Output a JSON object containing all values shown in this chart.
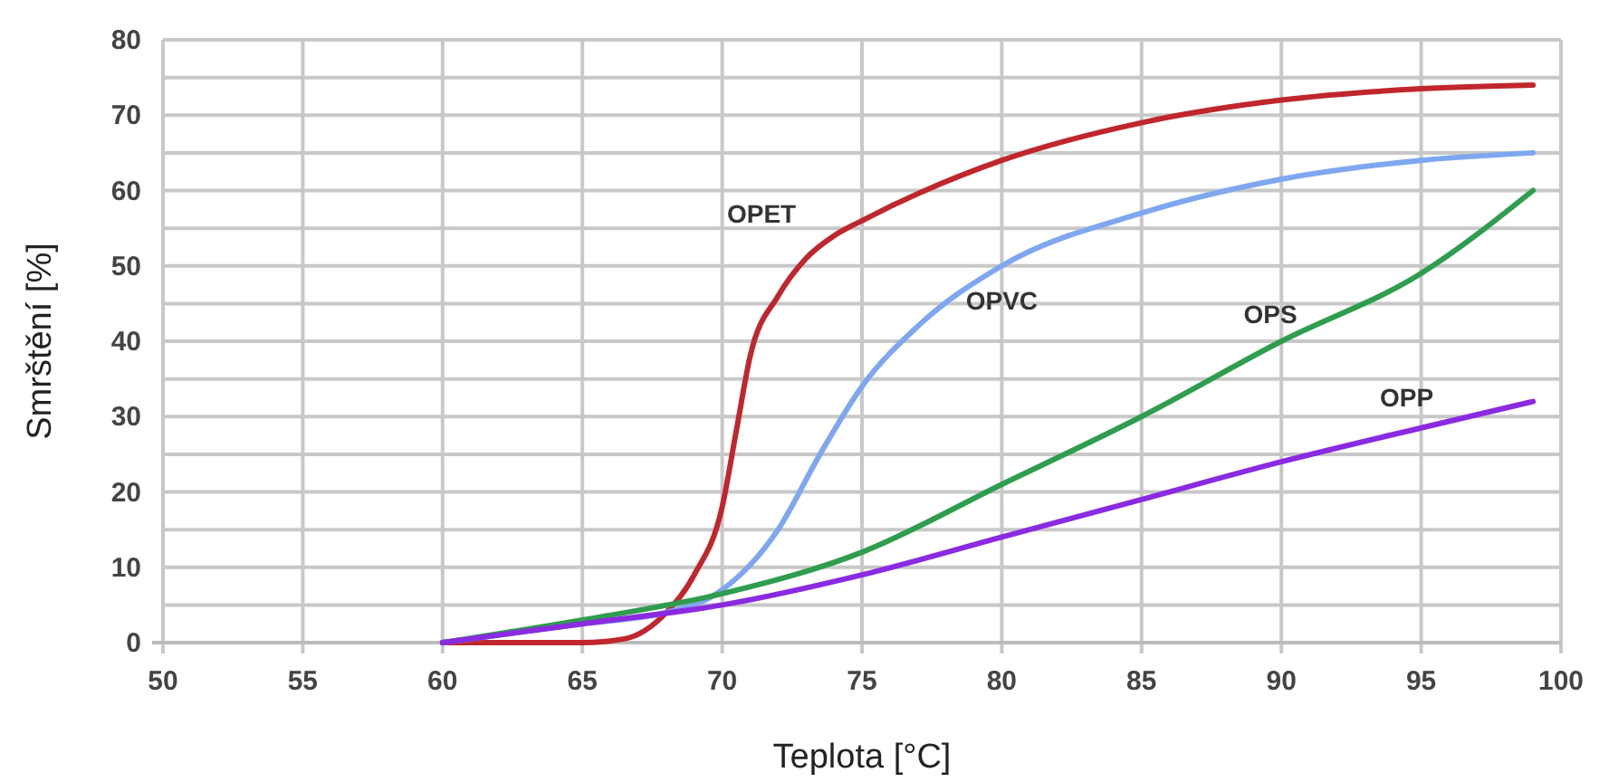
{
  "chart_data": {
    "type": "line",
    "xlabel": "Teplota [°C]",
    "ylabel": "Smrštění [%]",
    "xlim": [
      50,
      100
    ],
    "ylim": [
      0,
      80
    ],
    "xticks": [
      50,
      55,
      60,
      65,
      70,
      75,
      80,
      85,
      90,
      95,
      100
    ],
    "yticks": [
      0,
      {
        "value": 5,
        "label": null
      },
      10,
      {
        "value": 15,
        "label": null
      },
      20,
      {
        "value": 25,
        "label": null
      },
      30,
      {
        "value": 35,
        "label": null
      },
      40,
      {
        "value": 45,
        "label": null
      },
      50,
      {
        "value": 55,
        "label": null
      },
      60,
      {
        "value": 65,
        "label": null
      },
      70,
      {
        "value": 75,
        "label": null
      },
      80
    ],
    "grid": true,
    "marker": "none",
    "line_style": "solid",
    "series": [
      {
        "name": "OPET",
        "color": "#c0272d",
        "x": [
          60,
          65,
          66.5,
          68,
          69,
          70,
          70.5,
          71,
          72,
          73,
          74,
          75,
          80,
          85,
          90,
          95,
          99
        ],
        "values": [
          0,
          0,
          0.5,
          4,
          9,
          18,
          28,
          38,
          46,
          51,
          54,
          56,
          64,
          69,
          72,
          73.5,
          74
        ]
      },
      {
        "name": "OPVC",
        "color": "#7fa7ef",
        "x": [
          60,
          65,
          68,
          70,
          72,
          73.5,
          75,
          77,
          80,
          85,
          90,
          95,
          99
        ],
        "values": [
          0,
          2.5,
          4,
          7,
          15,
          25,
          34,
          42,
          50,
          57,
          61.5,
          64,
          65
        ]
      },
      {
        "name": "OPS",
        "color": "#2e9e4e",
        "x": [
          60,
          65,
          70,
          75,
          80,
          85,
          90,
          95,
          99
        ],
        "values": [
          0,
          3,
          6.5,
          12,
          21,
          30,
          40,
          49,
          60
        ]
      },
      {
        "name": "OPP",
        "color": "#8a2be2",
        "x": [
          60,
          65,
          70,
          75,
          80,
          85,
          90,
          95,
          99
        ],
        "values": [
          0,
          2.5,
          5,
          9,
          14,
          19,
          24,
          28.5,
          32
        ]
      }
    ]
  }
}
